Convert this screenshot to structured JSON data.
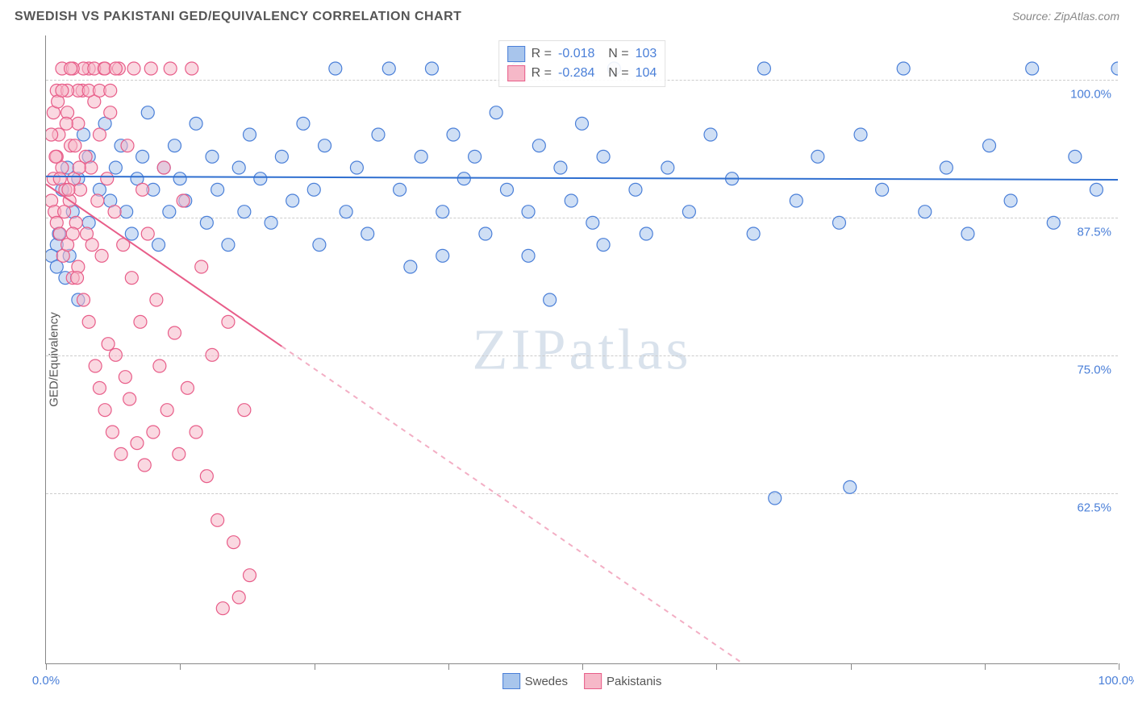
{
  "header": {
    "title": "SWEDISH VS PAKISTANI GED/EQUIVALENCY CORRELATION CHART",
    "source": "Source: ZipAtlas.com"
  },
  "chart": {
    "type": "scatter",
    "ylabel": "GED/Equivalency",
    "xlim": [
      0,
      100
    ],
    "ylim": [
      47,
      104
    ],
    "xtick_positions": [
      0,
      12.5,
      25,
      37.5,
      50,
      62.5,
      75,
      87.5,
      100
    ],
    "xtick_labels_shown": {
      "0": "0.0%",
      "100": "100.0%"
    },
    "ytick_positions": [
      62.5,
      75,
      87.5,
      100
    ],
    "ytick_labels": {
      "62.5": "62.5%",
      "75": "75.0%",
      "87.5": "87.5%",
      "100": "100.0%"
    },
    "background_color": "#ffffff",
    "grid_color": "#cccccc",
    "axis_color": "#888888",
    "ytick_label_color": "#4a7fd8",
    "xtick_label_color": "#4a7fd8",
    "marker_radius": 8,
    "marker_stroke_width": 1.2,
    "trend_line_width": 2,
    "watermark_text": "ZIPatlas",
    "watermark_color": "#d9e2ec",
    "series": [
      {
        "name": "Swedes",
        "fill": "#a8c5ec",
        "stroke": "#4a7fd8",
        "fill_opacity": 0.55,
        "R": "-0.018",
        "N": "103",
        "trend": {
          "x1": 0,
          "y1": 91.2,
          "x2": 100,
          "y2": 90.9,
          "color": "#2f6fd0"
        },
        "points": [
          [
            1,
            85
          ],
          [
            1.5,
            90
          ],
          [
            2,
            92
          ],
          [
            2.5,
            88
          ],
          [
            3,
            91
          ],
          [
            3.5,
            95
          ],
          [
            4,
            87
          ],
          [
            4,
            93
          ],
          [
            5,
            90
          ],
          [
            5.5,
            96
          ],
          [
            6,
            89
          ],
          [
            6.5,
            92
          ],
          [
            7,
            94
          ],
          [
            7.5,
            88
          ],
          [
            8,
            86
          ],
          [
            8.5,
            91
          ],
          [
            9,
            93
          ],
          [
            9.5,
            97
          ],
          [
            10,
            90
          ],
          [
            10.5,
            85
          ],
          [
            11,
            92
          ],
          [
            11.5,
            88
          ],
          [
            12,
            94
          ],
          [
            12.5,
            91
          ],
          [
            13,
            89
          ],
          [
            14,
            96
          ],
          [
            15,
            87
          ],
          [
            15.5,
            93
          ],
          [
            16,
            90
          ],
          [
            17,
            85
          ],
          [
            18,
            92
          ],
          [
            18.5,
            88
          ],
          [
            19,
            95
          ],
          [
            20,
            91
          ],
          [
            21,
            87
          ],
          [
            22,
            93
          ],
          [
            23,
            89
          ],
          [
            24,
            96
          ],
          [
            25,
            90
          ],
          [
            25.5,
            85
          ],
          [
            26,
            94
          ],
          [
            27,
            101
          ],
          [
            28,
            88
          ],
          [
            29,
            92
          ],
          [
            30,
            86
          ],
          [
            31,
            95
          ],
          [
            32,
            101
          ],
          [
            33,
            90
          ],
          [
            34,
            83
          ],
          [
            35,
            93
          ],
          [
            36,
            101
          ],
          [
            37,
            88
          ],
          [
            38,
            95
          ],
          [
            39,
            91
          ],
          [
            40,
            93
          ],
          [
            41,
            86
          ],
          [
            42,
            97
          ],
          [
            43,
            90
          ],
          [
            44,
            101
          ],
          [
            45,
            88
          ],
          [
            46,
            94
          ],
          [
            47,
            80
          ],
          [
            48,
            92
          ],
          [
            49,
            89
          ],
          [
            50,
            96
          ],
          [
            51,
            87
          ],
          [
            52,
            93
          ],
          [
            53,
            101
          ],
          [
            55,
            90
          ],
          [
            56,
            86
          ],
          [
            58,
            92
          ],
          [
            60,
            88
          ],
          [
            62,
            95
          ],
          [
            64,
            91
          ],
          [
            66,
            86
          ],
          [
            67,
            101
          ],
          [
            68,
            62
          ],
          [
            70,
            89
          ],
          [
            72,
            93
          ],
          [
            74,
            87
          ],
          [
            75,
            63
          ],
          [
            76,
            95
          ],
          [
            78,
            90
          ],
          [
            80,
            101
          ],
          [
            82,
            88
          ],
          [
            84,
            92
          ],
          [
            86,
            86
          ],
          [
            88,
            94
          ],
          [
            90,
            89
          ],
          [
            92,
            101
          ],
          [
            94,
            87
          ],
          [
            96,
            93
          ],
          [
            98,
            90
          ],
          [
            100,
            101
          ],
          [
            0.5,
            84
          ],
          [
            1,
            83
          ],
          [
            1.2,
            86
          ],
          [
            1.8,
            82
          ],
          [
            2.2,
            84
          ],
          [
            3,
            80
          ],
          [
            37,
            84
          ],
          [
            45,
            84
          ],
          [
            52,
            85
          ]
        ]
      },
      {
        "name": "Pakistanis",
        "fill": "#f6b8c8",
        "stroke": "#e85d89",
        "fill_opacity": 0.55,
        "R": "-0.284",
        "N": "104",
        "trend": {
          "x1": 0,
          "y1": 90.5,
          "x2": 65,
          "y2": 47,
          "color": "#e85d89",
          "dashed_after_x": 22
        },
        "points": [
          [
            0.5,
            89
          ],
          [
            0.7,
            91
          ],
          [
            0.8,
            88
          ],
          [
            1,
            93
          ],
          [
            1,
            87
          ],
          [
            1.2,
            95
          ],
          [
            1.3,
            86
          ],
          [
            1.5,
            92
          ],
          [
            1.6,
            84
          ],
          [
            1.8,
            90
          ],
          [
            2,
            97
          ],
          [
            2,
            85
          ],
          [
            2.2,
            89
          ],
          [
            2.3,
            94
          ],
          [
            2.5,
            82
          ],
          [
            2.6,
            91
          ],
          [
            2.8,
            87
          ],
          [
            3,
            96
          ],
          [
            3,
            83
          ],
          [
            3.2,
            90
          ],
          [
            3.4,
            99
          ],
          [
            3.5,
            80
          ],
          [
            3.7,
            93
          ],
          [
            3.8,
            86
          ],
          [
            4,
            101
          ],
          [
            4,
            78
          ],
          [
            4.2,
            92
          ],
          [
            4.3,
            85
          ],
          [
            4.5,
            98
          ],
          [
            4.6,
            74
          ],
          [
            4.8,
            89
          ],
          [
            5,
            95
          ],
          [
            5,
            72
          ],
          [
            5.2,
            84
          ],
          [
            5.4,
            101
          ],
          [
            5.5,
            70
          ],
          [
            5.7,
            91
          ],
          [
            5.8,
            76
          ],
          [
            6,
            97
          ],
          [
            6.2,
            68
          ],
          [
            6.4,
            88
          ],
          [
            6.5,
            75
          ],
          [
            6.8,
            101
          ],
          [
            7,
            66
          ],
          [
            7.2,
            85
          ],
          [
            7.4,
            73
          ],
          [
            7.6,
            94
          ],
          [
            7.8,
            71
          ],
          [
            8,
            82
          ],
          [
            8.2,
            101
          ],
          [
            8.5,
            67
          ],
          [
            8.8,
            78
          ],
          [
            9,
            90
          ],
          [
            9.2,
            65
          ],
          [
            9.5,
            86
          ],
          [
            9.8,
            101
          ],
          [
            10,
            68
          ],
          [
            10.3,
            80
          ],
          [
            10.6,
            74
          ],
          [
            11,
            92
          ],
          [
            11.3,
            70
          ],
          [
            11.6,
            101
          ],
          [
            12,
            77
          ],
          [
            12.4,
            66
          ],
          [
            12.8,
            89
          ],
          [
            13.2,
            72
          ],
          [
            13.6,
            101
          ],
          [
            14,
            68
          ],
          [
            14.5,
            83
          ],
          [
            15,
            64
          ],
          [
            15.5,
            75
          ],
          [
            16,
            60
          ],
          [
            16.5,
            52
          ],
          [
            17,
            78
          ],
          [
            17.5,
            58
          ],
          [
            18,
            53
          ],
          [
            18.5,
            70
          ],
          [
            19,
            55
          ],
          [
            3,
            99
          ],
          [
            3.5,
            101
          ],
          [
            4,
            99
          ],
          [
            4.5,
            101
          ],
          [
            5,
            99
          ],
          [
            5.5,
            101
          ],
          [
            6,
            99
          ],
          [
            6.5,
            101
          ],
          [
            1,
            99
          ],
          [
            1.5,
            101
          ],
          [
            2,
            99
          ],
          [
            2.5,
            101
          ],
          [
            0.5,
            95
          ],
          [
            0.7,
            97
          ],
          [
            0.9,
            93
          ],
          [
            1.1,
            98
          ],
          [
            1.3,
            91
          ],
          [
            1.5,
            99
          ],
          [
            1.7,
            88
          ],
          [
            1.9,
            96
          ],
          [
            2.1,
            90
          ],
          [
            2.3,
            101
          ],
          [
            2.5,
            86
          ],
          [
            2.7,
            94
          ],
          [
            2.9,
            82
          ],
          [
            3.1,
            92
          ]
        ]
      }
    ],
    "bottom_legend": [
      {
        "label": "Swedes",
        "fill": "#a8c5ec",
        "stroke": "#4a7fd8"
      },
      {
        "label": "Pakistanis",
        "fill": "#f6b8c8",
        "stroke": "#e85d89"
      }
    ]
  }
}
